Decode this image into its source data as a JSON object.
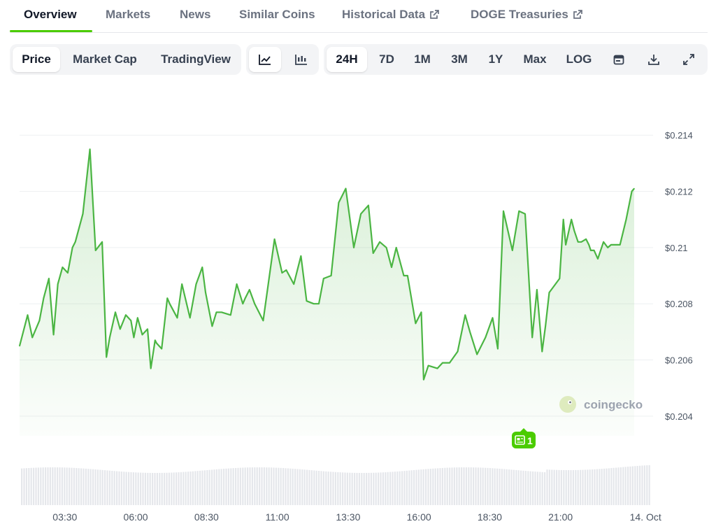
{
  "tabs": [
    "Overview",
    "Markets",
    "News",
    "Similar Coins",
    "Historical Data",
    "DOGE Treasuries"
  ],
  "toolbar": {
    "metric": [
      "Price",
      "Market Cap",
      "TradingView"
    ],
    "chart_style_icons": [
      "line-chart-icon",
      "candlestick-icon"
    ],
    "ranges": [
      "24H",
      "7D",
      "1M",
      "3M",
      "1Y",
      "Max",
      "LOG"
    ],
    "action_icons": [
      "calendar-icon",
      "download-icon",
      "expand-icon"
    ]
  },
  "watermark": "coingecko",
  "news_badge": {
    "count": "1"
  },
  "colors": {
    "line": "#4bb543",
    "accent": "#4bcc00",
    "volume": "#e5e7eb"
  },
  "chart_data": {
    "type": "area",
    "title": "",
    "xlabel": "",
    "ylabel": "",
    "ylim": [
      0.2033,
      0.2152
    ],
    "xlim": [
      "01:54",
      "Oct 14 02:16"
    ],
    "y_ticks": [
      "$0.204",
      "$0.206",
      "$0.208",
      "$0.21",
      "$0.212",
      "$0.214"
    ],
    "y_tick_values": [
      0.204,
      0.206,
      0.208,
      0.21,
      0.212,
      0.214
    ],
    "x_ticks": [
      "03:30",
      "06:00",
      "08:30",
      "11:00",
      "13:30",
      "16:00",
      "18:30",
      "21:00",
      "14. Oct"
    ],
    "x_tick_minutes": [
      210,
      360,
      510,
      660,
      810,
      960,
      1110,
      1260,
      1440
    ],
    "grid": "horizontal",
    "series": [
      {
        "x_minutes": [
          114,
          131,
          141,
          156,
          165,
          176,
          186,
          195,
          205,
          216,
          226,
          232,
          248,
          263,
          275,
          289,
          298,
          305,
          317,
          327,
          339,
          350,
          356,
          364,
          374,
          385,
          392,
          401,
          404,
          415,
          427,
          432,
          448,
          458,
          475,
          488,
          501,
          508,
          522,
          531,
          542,
          561,
          574,
          587,
          592,
          601,
          612,
          630,
          654,
          670,
          679,
          695,
          710,
          722,
          737,
          748,
          758,
          774,
          790,
          805,
          822,
          837,
          853,
          863,
          877,
          891,
          902,
          912,
          928,
          936,
          953,
          965,
          970,
          980,
          999,
          1010,
          1025,
          1042,
          1058,
          1068,
          1083,
          1101,
          1116,
          1127,
          1139,
          1158,
          1172,
          1185,
          1200,
          1210,
          1221,
          1228,
          1236,
          1258,
          1266,
          1271,
          1283,
          1289,
          1297,
          1304,
          1314,
          1320,
          1324,
          1331,
          1339,
          1351,
          1360,
          1367,
          1386,
          1399,
          1411,
          1416
        ],
        "values": [
          0.2065,
          0.2076,
          0.2068,
          0.2074,
          0.2082,
          0.2089,
          0.2069,
          0.2087,
          0.2093,
          0.2091,
          0.21,
          0.2102,
          0.2112,
          0.2135,
          0.2099,
          0.2102,
          0.2061,
          0.2068,
          0.2077,
          0.2071,
          0.2076,
          0.2074,
          0.2068,
          0.2075,
          0.2069,
          0.2071,
          0.2057,
          0.2067,
          0.2066,
          0.2064,
          0.2082,
          0.208,
          0.2075,
          0.2087,
          0.2075,
          0.2087,
          0.2093,
          0.2084,
          0.2072,
          0.2077,
          0.2077,
          0.2076,
          0.2087,
          0.208,
          0.2082,
          0.2085,
          0.208,
          0.2074,
          0.2103,
          0.2091,
          0.2092,
          0.2087,
          0.2097,
          0.2081,
          0.208,
          0.208,
          0.2089,
          0.209,
          0.2116,
          0.2121,
          0.21,
          0.2112,
          0.2115,
          0.2098,
          0.2102,
          0.21,
          0.2093,
          0.21,
          0.209,
          0.209,
          0.2073,
          0.2077,
          0.2053,
          0.2058,
          0.2057,
          0.2059,
          0.2059,
          0.2063,
          0.2076,
          0.207,
          0.2062,
          0.2068,
          0.2075,
          0.2064,
          0.2113,
          0.2099,
          0.2113,
          0.2112,
          0.2068,
          0.2085,
          0.2063,
          0.2072,
          0.2084,
          0.2089,
          0.211,
          0.2101,
          0.211,
          0.2106,
          0.2102,
          0.2102,
          0.2103,
          0.2101,
          0.2099,
          0.2099,
          0.2096,
          0.2102,
          0.21,
          0.2101,
          0.2101,
          0.211,
          0.212,
          0.2121
        ]
      }
    ]
  }
}
